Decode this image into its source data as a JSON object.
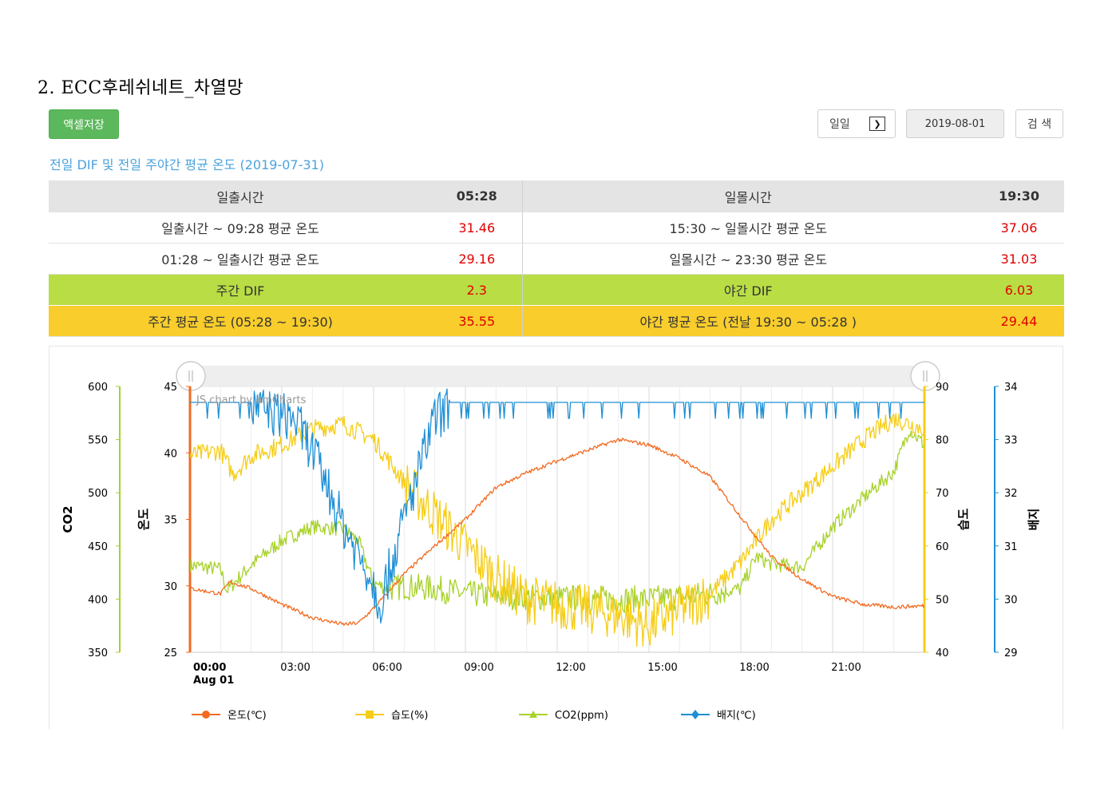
{
  "page": {
    "heading": "2. ECC후레쉬네트_차열망"
  },
  "toolbar": {
    "excel_label": "액셀저장",
    "period_value": "일일",
    "date_value": "2019-08-01",
    "search_label": "검 색"
  },
  "summary": {
    "title": "전일 DIF 및 전일 주야간 평균 온도 (2019-07-31)",
    "rows": [
      {
        "left_label": "일출시간",
        "left_value": "05:28",
        "right_label": "일몰시간",
        "right_value": "19:30"
      },
      {
        "left_label": "일출시간 ~ 09:28 평균 온도",
        "left_value": "31.46",
        "right_label": "15:30 ~ 일몰시간 평균 온도",
        "right_value": "37.06"
      },
      {
        "left_label": "01:28 ~ 일출시간 평균 온도",
        "left_value": "29.16",
        "right_label": "일몰시간 ~ 23:30 평균 온도",
        "right_value": "31.03"
      },
      {
        "left_label": "주간 DIF",
        "left_value": "2.3",
        "right_label": "야간 DIF",
        "right_value": "6.03"
      },
      {
        "left_label": "주간 평균 온도 (05:28 ~ 19:30)",
        "left_value": "35.55",
        "right_label": "야간 평균 온도 (전날 19:30 ~ 05:28 )",
        "right_value": "29.44"
      }
    ],
    "colors": {
      "value_red": "#e00000",
      "dif_green": "#b9dd45",
      "avg_yellow": "#f8cd2c"
    }
  },
  "chart_data": {
    "type": "line",
    "credit": "JS chart by amCharts",
    "x_ticks": [
      "00:00",
      "03:00",
      "06:00",
      "09:00",
      "12:00",
      "15:00",
      "18:00",
      "21:00"
    ],
    "x_date_label": "Aug 01",
    "x_range_hours": [
      0,
      24
    ],
    "grid": true,
    "legend_position": "bottom",
    "axes": {
      "temp": {
        "title": "온도",
        "range": [
          25,
          45
        ],
        "ticks": [
          "25",
          "30",
          "35",
          "40",
          "45"
        ],
        "color": "#f26b21",
        "side": "left"
      },
      "co2": {
        "title": "CO2",
        "range": [
          350,
          600
        ],
        "ticks": [
          "350",
          "400",
          "450",
          "500",
          "550",
          "600"
        ],
        "color": "#a8d22a",
        "side": "left"
      },
      "humidity": {
        "title": "습도",
        "range": [
          40,
          90
        ],
        "ticks": [
          "40",
          "50",
          "60",
          "70",
          "80",
          "90"
        ],
        "color": "#f6cd16",
        "side": "right"
      },
      "bag": {
        "title": "배지",
        "range": [
          29,
          34
        ],
        "ticks": [
          "29",
          "30",
          "31",
          "32",
          "33",
          "34"
        ],
        "color": "#1e8fd5",
        "side": "right"
      }
    },
    "series": [
      {
        "name": "온도(℃)",
        "axis": "temp",
        "color": "#f26b21",
        "marker": "circle",
        "noise": 0.15,
        "points": [
          [
            0,
            29.8
          ],
          [
            1,
            29.4
          ],
          [
            1.3,
            30.3
          ],
          [
            2,
            29.8
          ],
          [
            3,
            28.6
          ],
          [
            4,
            27.6
          ],
          [
            5,
            27.1
          ],
          [
            5.5,
            27.2
          ],
          [
            6,
            28.3
          ],
          [
            7,
            30.9
          ],
          [
            8,
            33
          ],
          [
            9,
            35
          ],
          [
            10,
            37.4
          ],
          [
            11,
            38.5
          ],
          [
            12,
            39.4
          ],
          [
            13,
            40.2
          ],
          [
            14,
            41
          ],
          [
            15,
            40.6
          ],
          [
            16,
            39.6
          ],
          [
            17,
            38.2
          ],
          [
            18,
            35.2
          ],
          [
            19,
            32.2
          ],
          [
            20,
            30.5
          ],
          [
            21,
            29.2
          ],
          [
            22,
            28.6
          ],
          [
            23,
            28.4
          ],
          [
            24,
            28.5
          ]
        ]
      },
      {
        "name": "습도(%)",
        "axis": "humidity",
        "color": "#f6cd16",
        "marker": "square",
        "noise": 1.8,
        "points": [
          [
            0,
            77
          ],
          [
            1,
            78
          ],
          [
            1.4,
            73.5
          ],
          [
            2,
            77
          ],
          [
            3,
            79
          ],
          [
            4,
            82
          ],
          [
            5,
            83
          ],
          [
            6,
            80
          ],
          [
            7,
            72
          ],
          [
            8,
            66
          ],
          [
            9,
            60
          ],
          [
            10,
            54
          ],
          [
            11,
            50
          ],
          [
            12,
            49
          ],
          [
            13,
            48
          ],
          [
            14,
            47
          ],
          [
            15,
            45
          ],
          [
            16,
            48
          ],
          [
            17,
            51
          ],
          [
            18,
            57
          ],
          [
            19,
            65
          ],
          [
            20,
            70
          ],
          [
            21,
            75
          ],
          [
            22,
            80
          ],
          [
            23,
            84
          ],
          [
            24,
            82
          ]
        ]
      },
      {
        "name": "CO2(ppm)",
        "axis": "co2",
        "color": "#a8d22a",
        "marker": "triangle",
        "noise": 7,
        "points": [
          [
            0,
            432
          ],
          [
            1,
            428
          ],
          [
            1.2,
            408
          ],
          [
            2,
            432
          ],
          [
            3,
            455
          ],
          [
            4,
            468
          ],
          [
            5,
            466
          ],
          [
            5.5,
            455
          ],
          [
            6,
            415
          ],
          [
            6.5,
            410
          ],
          [
            7,
            412
          ],
          [
            8,
            410
          ],
          [
            9,
            405
          ],
          [
            10,
            403
          ],
          [
            11,
            402
          ],
          [
            12,
            401
          ],
          [
            13,
            401
          ],
          [
            14,
            400
          ],
          [
            15,
            400
          ],
          [
            16,
            402
          ],
          [
            17,
            405
          ],
          [
            18,
            410
          ],
          [
            18.5,
            440
          ],
          [
            19,
            433
          ],
          [
            20,
            430
          ],
          [
            21,
            468
          ],
          [
            22,
            495
          ],
          [
            23,
            520
          ],
          [
            23.5,
            560
          ],
          [
            24,
            545
          ]
        ]
      },
      {
        "name": "배지(℃)",
        "axis": "bag",
        "color": "#1e8fd5",
        "marker": "diamond",
        "noise": 0.1,
        "points": [
          [
            0,
            33.7
          ],
          [
            2,
            33.6
          ],
          [
            3.4,
            33.4
          ],
          [
            4,
            32.8
          ],
          [
            5,
            31.4
          ],
          [
            6,
            30.3
          ],
          [
            6.2,
            29.9
          ],
          [
            7,
            31.5
          ],
          [
            8,
            33.4
          ],
          [
            8.5,
            33.6
          ],
          [
            9,
            33.7
          ],
          [
            24,
            33.7
          ]
        ]
      }
    ]
  }
}
